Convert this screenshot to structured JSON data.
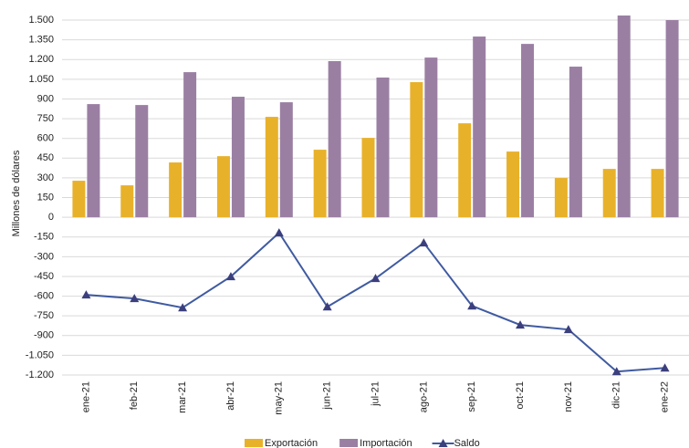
{
  "chart_data": {
    "type": "bar-line",
    "y_label": "Millones de dólares",
    "categories": [
      "ene-21",
      "feb-21",
      "mar-21",
      "abr-21",
      "may-21",
      "jun-21",
      "jul-21",
      "ago-21",
      "sep-21",
      "oct-21",
      "nov-21",
      "dic-21",
      "ene-22"
    ],
    "series": [
      {
        "name": "Exportación",
        "type": "bar",
        "color": "#e8b12a",
        "values": [
          278,
          243,
          417,
          465,
          764,
          514,
          604,
          1028,
          715,
          500,
          299,
          368,
          368
        ]
      },
      {
        "name": "Importación",
        "type": "bar",
        "color": "#9a7fa3",
        "values": [
          861,
          854,
          1104,
          917,
          875,
          1188,
          1063,
          1215,
          1375,
          1319,
          1146,
          1535,
          1500
        ]
      },
      {
        "name": "Saldo",
        "type": "line",
        "color": "#3f5aa0",
        "values": [
          -590,
          -618,
          -688,
          -451,
          -118,
          -681,
          -465,
          -194,
          -674,
          -819,
          -854,
          -1174,
          -1146
        ]
      }
    ],
    "ylim": [
      -1200,
      1560
    ],
    "yticks": [
      {
        "value": -1200,
        "label": "-1.200"
      },
      {
        "value": -1050,
        "label": "-1.050"
      },
      -900,
      -750,
      -600,
      -450,
      -300,
      -150,
      0,
      150,
      300,
      450,
      600,
      750,
      900,
      {
        "value": 1050,
        "label": "1.050"
      },
      {
        "value": 1200,
        "label": "1.200"
      },
      {
        "value": 1350,
        "label": "1.350"
      },
      {
        "value": 1500,
        "label": "1.500"
      }
    ],
    "grid": true
  }
}
